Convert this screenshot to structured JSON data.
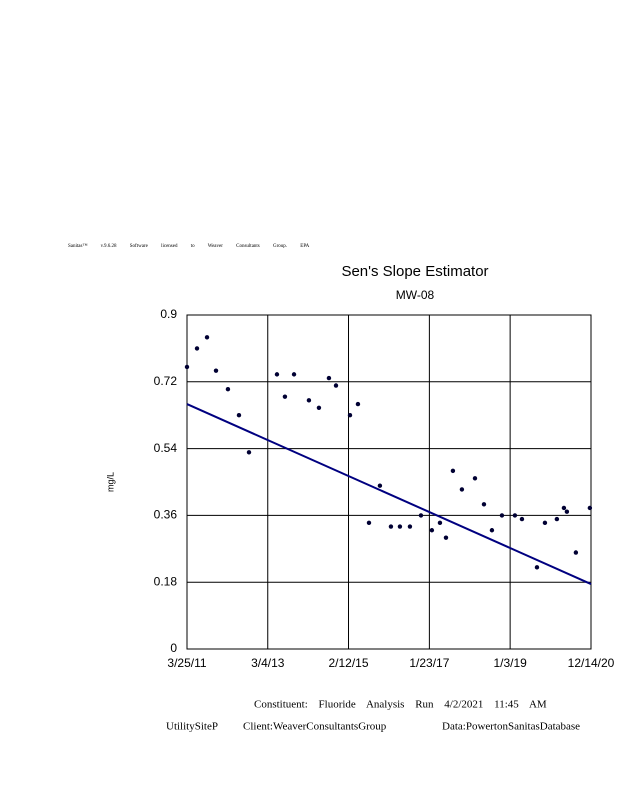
{
  "chart_data": {
    "type": "scatter",
    "header": "Sanitas™ v.9.6.28 Software licensed to Weaver Consultants Group. EPA",
    "title": "Sen's Slope Estimator",
    "subtitle": "MW-08",
    "y_label": "mg/L",
    "footer": [
      "Constituent: Fluoride Analysis Run 4/2/2021 11:45 AM",
      "UtilitySiteP",
      "Client:WeaverConsultantsGroup",
      "Data:PowertonSanitasDatabase"
    ],
    "xlim": [
      "2011-03-25",
      "2020-12-14"
    ],
    "xticks": [
      {
        "value": "2011-03-25",
        "label": "3/25/11"
      },
      {
        "value": "2013-03-04",
        "label": "3/4/13"
      },
      {
        "value": "2015-02-12",
        "label": "2/12/15"
      },
      {
        "value": "2017-01-23",
        "label": "1/23/17"
      },
      {
        "value": "2019-01-03",
        "label": "1/3/19"
      },
      {
        "value": "2020-12-14",
        "label": "12/14/20"
      }
    ],
    "ylim": [
      0,
      0.9
    ],
    "yticks": [
      0,
      0.18,
      0.36,
      0.54,
      0.72,
      0.9
    ],
    "grid": true,
    "series": [
      {
        "color": "#000033",
        "x": [
          "2011-03-25",
          "2011-06-21",
          "2011-09-17",
          "2011-12-05",
          "2012-03-19",
          "2012-06-24",
          "2012-09-20",
          "2013-05-24",
          "2013-08-02",
          "2013-10-21",
          "2014-03-01",
          "2014-05-28",
          "2014-08-24",
          "2014-10-25",
          "2015-02-25",
          "2015-05-06",
          "2015-08-11",
          "2015-11-15",
          "2016-02-20",
          "2016-05-09",
          "2016-08-05",
          "2016-11-10",
          "2017-02-14",
          "2017-04-26",
          "2017-06-18",
          "2017-08-18",
          "2017-11-05",
          "2018-02-28",
          "2018-05-18",
          "2018-07-27",
          "2018-10-23",
          "2019-02-14",
          "2019-04-17",
          "2019-08-27",
          "2019-11-05",
          "2020-02-18",
          "2020-04-20",
          "2020-05-16",
          "2020-08-03",
          "2020-12-04"
        ],
        "values": [
          0.76,
          0.81,
          0.84,
          0.75,
          0.7,
          0.63,
          0.53,
          0.74,
          0.68,
          0.74,
          0.67,
          0.65,
          0.73,
          0.71,
          0.63,
          0.66,
          0.34,
          0.44,
          0.33,
          0.33,
          0.33,
          0.36,
          0.32,
          0.34,
          0.3,
          0.48,
          0.43,
          0.46,
          0.39,
          0.32,
          0.36,
          0.36,
          0.35,
          0.22,
          0.34,
          0.35,
          0.38,
          0.37,
          0.26,
          0.38
        ]
      },
      {
        "color": "#000080",
        "line": true,
        "x": [
          "2011-03-25",
          "2020-12-14"
        ],
        "values": [
          0.66,
          0.175
        ]
      }
    ]
  }
}
